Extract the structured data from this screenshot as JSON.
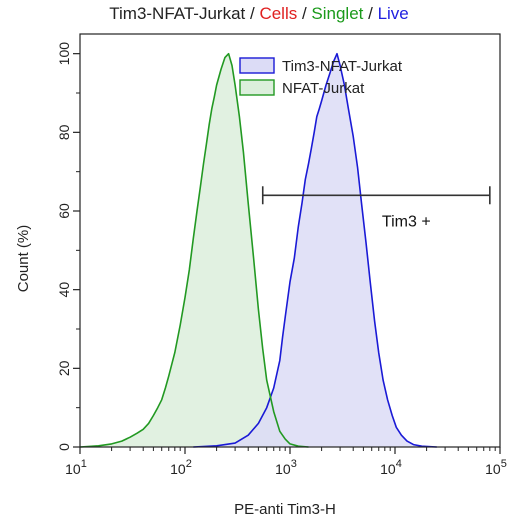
{
  "title": {
    "parts": [
      {
        "text": "Tim3-NFAT-Jurkat",
        "color": "#222222"
      },
      {
        "text": " / ",
        "color": "#222222"
      },
      {
        "text": "Cells",
        "color": "#e02020"
      },
      {
        "text": " / ",
        "color": "#222222"
      },
      {
        "text": "Singlet",
        "color": "#1a9a1a"
      },
      {
        "text": " / ",
        "color": "#222222"
      },
      {
        "text": "Live",
        "color": "#2020e0"
      }
    ]
  },
  "chart_data": {
    "type": "area",
    "xlabel": "PE-anti Tim3-H",
    "ylabel": "Count  (%)",
    "x_scale": "log",
    "xlim": [
      10,
      100000
    ],
    "ylim": [
      0,
      105
    ],
    "x_ticks": [
      {
        "base": "10",
        "exp": "1",
        "value": 10
      },
      {
        "base": "10",
        "exp": "2",
        "value": 100
      },
      {
        "base": "10",
        "exp": "3",
        "value": 1000
      },
      {
        "base": "10",
        "exp": "4",
        "value": 10000
      },
      {
        "base": "10",
        "exp": "5",
        "value": 100000
      }
    ],
    "y_ticks": [
      "0",
      "20",
      "40",
      "60",
      "80",
      "100"
    ],
    "legend_position": "top-right",
    "series": [
      {
        "name": "Tim3-NFAT-Jurkat",
        "stroke": "#1a1ad6",
        "fill": "#dcdcf6",
        "points": [
          [
            120,
            0
          ],
          [
            200,
            0.3
          ],
          [
            300,
            1
          ],
          [
            400,
            3
          ],
          [
            500,
            6
          ],
          [
            600,
            10
          ],
          [
            700,
            15
          ],
          [
            800,
            22
          ],
          [
            850,
            28
          ],
          [
            900,
            33
          ],
          [
            1000,
            42
          ],
          [
            1100,
            48
          ],
          [
            1200,
            56
          ],
          [
            1300,
            62
          ],
          [
            1400,
            68
          ],
          [
            1500,
            72
          ],
          [
            1600,
            76
          ],
          [
            1700,
            80
          ],
          [
            1800,
            84
          ],
          [
            1900,
            86
          ],
          [
            2000,
            88
          ],
          [
            2200,
            92
          ],
          [
            2400,
            95
          ],
          [
            2600,
            98
          ],
          [
            2800,
            100
          ],
          [
            3000,
            97
          ],
          [
            3300,
            92
          ],
          [
            3600,
            86
          ],
          [
            4000,
            79
          ],
          [
            4400,
            71
          ],
          [
            4800,
            62
          ],
          [
            5300,
            52
          ],
          [
            5800,
            42
          ],
          [
            6400,
            32
          ],
          [
            7000,
            24
          ],
          [
            7700,
            17
          ],
          [
            8500,
            12
          ],
          [
            9400,
            8
          ],
          [
            10300,
            5
          ],
          [
            11500,
            3
          ],
          [
            13000,
            1.5
          ],
          [
            15000,
            0.6
          ],
          [
            18000,
            0.2
          ],
          [
            25000,
            0
          ]
        ]
      },
      {
        "name": "NFAT-Jurkat",
        "stroke": "#229922",
        "fill": "#dcefdc",
        "points": [
          [
            10,
            0
          ],
          [
            15,
            0.3
          ],
          [
            20,
            0.8
          ],
          [
            25,
            1.5
          ],
          [
            30,
            2.5
          ],
          [
            35,
            3.5
          ],
          [
            40,
            4.5
          ],
          [
            45,
            6
          ],
          [
            50,
            8
          ],
          [
            55,
            10
          ],
          [
            60,
            12
          ],
          [
            65,
            15
          ],
          [
            70,
            18
          ],
          [
            80,
            24
          ],
          [
            90,
            31
          ],
          [
            100,
            38
          ],
          [
            110,
            45
          ],
          [
            120,
            53
          ],
          [
            130,
            60
          ],
          [
            140,
            66
          ],
          [
            150,
            72
          ],
          [
            160,
            77
          ],
          [
            170,
            82
          ],
          [
            180,
            86
          ],
          [
            190,
            89
          ],
          [
            200,
            92
          ],
          [
            220,
            96
          ],
          [
            240,
            99
          ],
          [
            260,
            100
          ],
          [
            280,
            97
          ],
          [
            300,
            92
          ],
          [
            330,
            84
          ],
          [
            360,
            75
          ],
          [
            400,
            62
          ],
          [
            450,
            48
          ],
          [
            500,
            35
          ],
          [
            550,
            25
          ],
          [
            600,
            17
          ],
          [
            700,
            9
          ],
          [
            800,
            4
          ],
          [
            900,
            2
          ],
          [
            1000,
            0.8
          ],
          [
            1200,
            0.2
          ],
          [
            1500,
            0
          ]
        ]
      }
    ],
    "gate": {
      "label": "Tim3 +",
      "x_start": 550,
      "x_end": 80000,
      "y": 64
    }
  }
}
